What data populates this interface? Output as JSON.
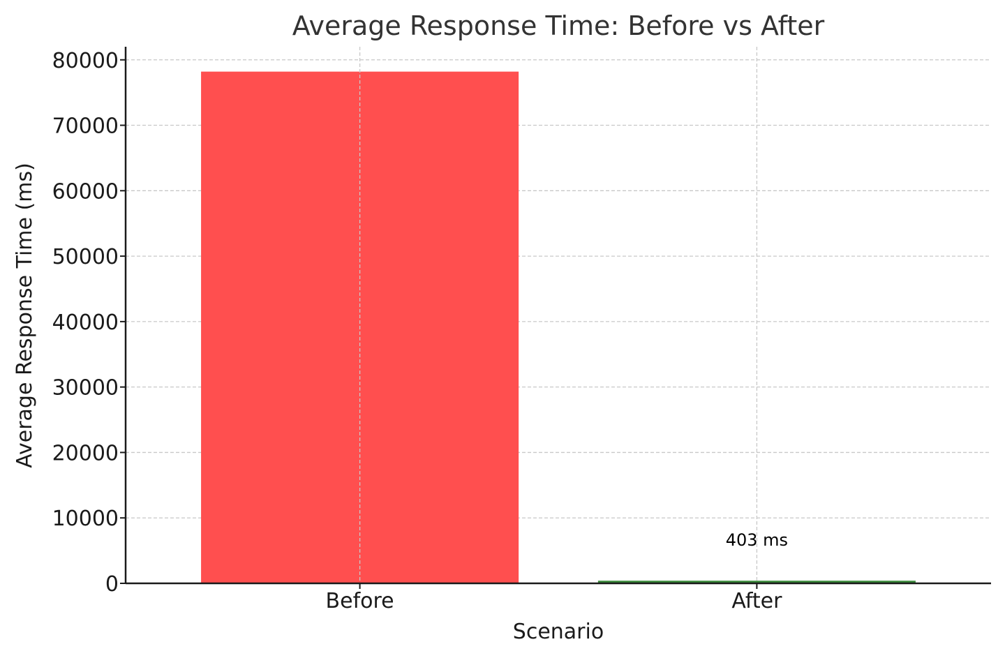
{
  "chart_data": {
    "type": "bar",
    "title": "Average Response Time: Before vs After",
    "xlabel": "Scenario",
    "ylabel": "Average Response Time (ms)",
    "categories": [
      "Before",
      "After"
    ],
    "values": [
      78200,
      403
    ],
    "colors": [
      "#ff4f4f",
      "#3a8a3a"
    ],
    "ylim": [
      0,
      82000
    ],
    "yticks": [
      0,
      10000,
      20000,
      30000,
      40000,
      50000,
      60000,
      70000,
      80000
    ],
    "grid": true,
    "data_labels": [
      {
        "category": "After",
        "text": "403 ms"
      }
    ]
  }
}
